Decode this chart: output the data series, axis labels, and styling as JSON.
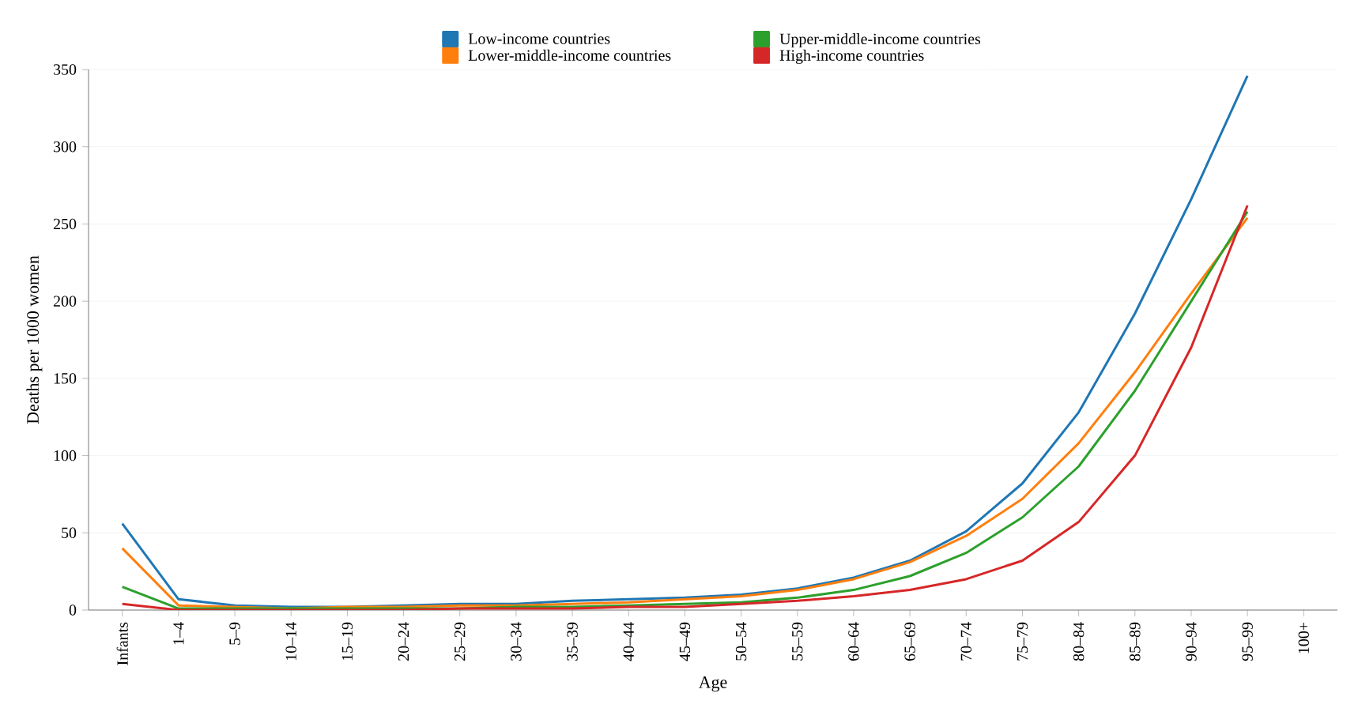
{
  "chart_data": {
    "type": "line",
    "xlabel": "Age",
    "ylabel": "Deaths per 1000 women",
    "categories": [
      "Infants",
      "1–4",
      "5–9",
      "10–14",
      "15–19",
      "20–24",
      "25–29",
      "30–34",
      "35–39",
      "40–44",
      "45–49",
      "50–54",
      "55–59",
      "60–64",
      "65–69",
      "70–74",
      "75–79",
      "80–84",
      "85–89",
      "90–94",
      "95–99",
      "100+"
    ],
    "series": [
      {
        "name": "Low-income countries",
        "color": "#1f77b4",
        "values": [
          56,
          7,
          3,
          2,
          2,
          3,
          4,
          4,
          6,
          7,
          8,
          10,
          14,
          21,
          32,
          51,
          82,
          128,
          192,
          266,
          346,
          null
        ]
      },
      {
        "name": "Lower-middle-income countries",
        "color": "#ff7f0e",
        "values": [
          40,
          3,
          2,
          1,
          2,
          2,
          3,
          3,
          4,
          5,
          7,
          9,
          13,
          20,
          31,
          48,
          72,
          108,
          154,
          205,
          254,
          null
        ]
      },
      {
        "name": "Upper-middle-income countries",
        "color": "#2ca02c",
        "values": [
          15,
          1,
          1,
          1,
          1,
          1,
          1,
          2,
          2,
          3,
          4,
          5,
          8,
          13,
          22,
          37,
          60,
          93,
          142,
          200,
          258,
          null
        ]
      },
      {
        "name": "High-income countries",
        "color": "#d62728",
        "values": [
          4,
          0,
          0,
          0,
          0,
          0,
          1,
          1,
          1,
          2,
          2,
          4,
          6,
          9,
          13,
          20,
          32,
          57,
          100,
          170,
          262,
          null
        ]
      }
    ],
    "ylim": [
      0,
      350
    ],
    "yticks": [
      0,
      50,
      100,
      150,
      200,
      250,
      300,
      350
    ],
    "grid": "y",
    "legend": "top",
    "marker": "none",
    "line_style": "solid"
  }
}
